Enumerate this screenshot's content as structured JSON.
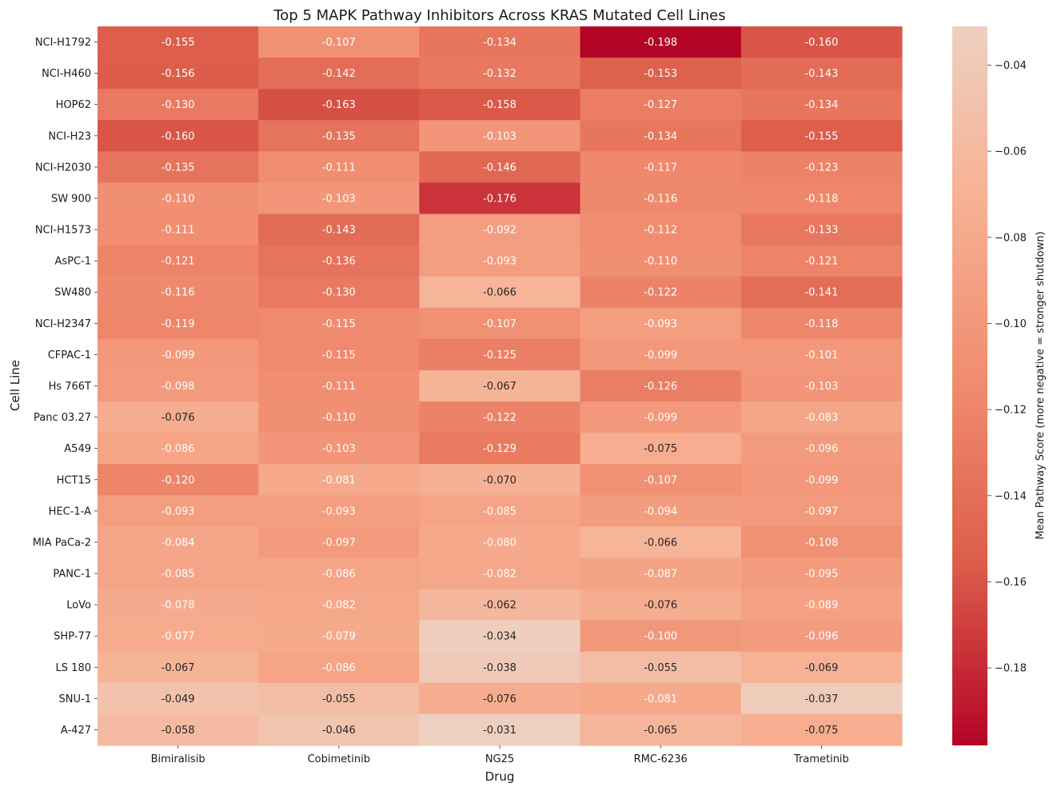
{
  "chart_data": {
    "type": "heatmap",
    "title": "Top 5 MAPK Pathway Inhibitors Across KRAS Mutated Cell Lines",
    "xlabel": "Drug",
    "ylabel": "Cell Line",
    "colorbar_label": "Mean Pathway Score (more negative = stronger shutdown)",
    "colorbar_ticks": [
      -0.04,
      -0.06,
      -0.08,
      -0.1,
      -0.12,
      -0.14,
      -0.16,
      -0.18
    ],
    "colorbar_tick_labels": [
      "−0.04",
      "−0.06",
      "−0.08",
      "−0.10",
      "−0.12",
      "−0.14",
      "−0.16",
      "−0.18"
    ],
    "vmin": -0.198,
    "vmax": -0.031,
    "colormap": [
      "#b40426",
      "#dc5d4a",
      "#f08b6e",
      "#f7af91",
      "#eed0c0"
    ],
    "columns": [
      "Bimiralisib",
      "Cobimetinib",
      "NG25",
      "RMC-6236",
      "Trametinib"
    ],
    "rows": [
      "NCI-H1792",
      "NCI-H460",
      "HOP62",
      "NCI-H23",
      "NCI-H2030",
      "SW 900",
      "NCI-H1573",
      "AsPC-1",
      "SW480",
      "NCI-H2347",
      "CFPAC-1",
      "Hs 766T",
      "Panc 03.27",
      "A549",
      "HCT15",
      "HEC-1-A",
      "MIA PaCa-2",
      "PANC-1",
      "LoVo",
      "SHP-77",
      "LS 180",
      "SNU-1",
      "A-427"
    ],
    "values": [
      [
        -0.155,
        -0.107,
        -0.134,
        -0.198,
        -0.16
      ],
      [
        -0.156,
        -0.142,
        -0.132,
        -0.153,
        -0.143
      ],
      [
        -0.13,
        -0.163,
        -0.158,
        -0.127,
        -0.134
      ],
      [
        -0.16,
        -0.135,
        -0.103,
        -0.134,
        -0.155
      ],
      [
        -0.135,
        -0.111,
        -0.146,
        -0.117,
        -0.123
      ],
      [
        -0.11,
        -0.103,
        -0.176,
        -0.116,
        -0.118
      ],
      [
        -0.111,
        -0.143,
        -0.092,
        -0.112,
        -0.133
      ],
      [
        -0.121,
        -0.136,
        -0.093,
        -0.11,
        -0.121
      ],
      [
        -0.116,
        -0.13,
        -0.066,
        -0.122,
        -0.141
      ],
      [
        -0.119,
        -0.115,
        -0.107,
        -0.093,
        -0.118
      ],
      [
        -0.099,
        -0.115,
        -0.125,
        -0.099,
        -0.101
      ],
      [
        -0.098,
        -0.111,
        -0.067,
        -0.126,
        -0.103
      ],
      [
        -0.076,
        -0.11,
        -0.122,
        -0.099,
        -0.083
      ],
      [
        -0.086,
        -0.103,
        -0.129,
        -0.075,
        -0.096
      ],
      [
        -0.12,
        -0.081,
        -0.07,
        -0.107,
        -0.099
      ],
      [
        -0.093,
        -0.093,
        -0.085,
        -0.094,
        -0.097
      ],
      [
        -0.084,
        -0.097,
        -0.08,
        -0.066,
        -0.108
      ],
      [
        -0.085,
        -0.086,
        -0.082,
        -0.087,
        -0.095
      ],
      [
        -0.078,
        -0.082,
        -0.062,
        -0.076,
        -0.089
      ],
      [
        -0.077,
        -0.079,
        -0.034,
        -0.1,
        -0.096
      ],
      [
        -0.067,
        -0.086,
        -0.038,
        -0.055,
        -0.069
      ],
      [
        -0.049,
        -0.055,
        -0.076,
        -0.081,
        -0.037
      ],
      [
        -0.058,
        -0.046,
        -0.031,
        -0.065,
        -0.075
      ]
    ]
  }
}
